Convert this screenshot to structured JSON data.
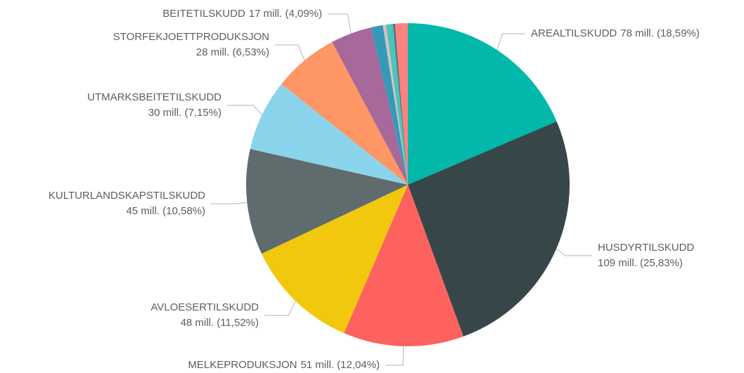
{
  "chart_data": {
    "type": "pie",
    "categories": [
      "AREALTILSKUDD",
      "HUSDYRTILSKUDD",
      "MELKEPRODUKSJON",
      "AVLOESERTILSKUDD",
      "KULTURLANDSKAPSTILSKUDD",
      "UTMARKSBEITETILSKUDD",
      "STORFEKJOETTPRODUKSJON",
      "BEITETILSKUDD",
      null,
      null,
      null,
      null,
      null
    ],
    "values": [
      18.59,
      25.83,
      12.04,
      11.52,
      10.58,
      7.15,
      6.53,
      4.09,
      1.2,
      0.3,
      0.7,
      0.2,
      1.27
    ],
    "value_labels": [
      "78 mill. (18,59%)",
      "109 mill. (25,83%)",
      "51 mill. (12,04%)",
      "48 mill. (11,52%)",
      "45 mill. (10,58%)",
      "30 mill. (7,15%)",
      "28 mill. (6,53%)",
      "17 mill. (4,09%)",
      null,
      null,
      null,
      null,
      null
    ],
    "colors": [
      "#01b8aa",
      "#374649",
      "#fd625e",
      "#f2c80f",
      "#5f6b6d",
      "#8ad4eb",
      "#fe9666",
      "#a66999",
      "#3599b8",
      "#dfbfbf",
      "#4ac5bb",
      "#5f6b6d",
      "#fb8281"
    ]
  }
}
